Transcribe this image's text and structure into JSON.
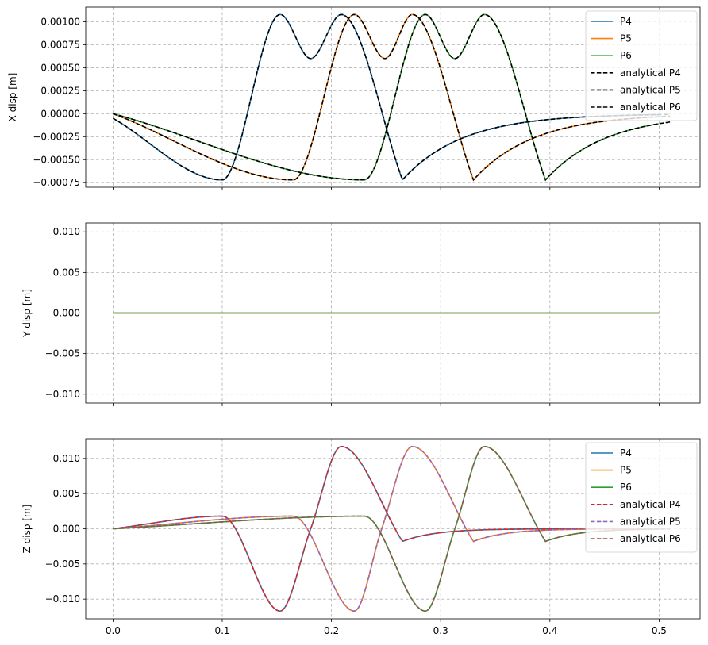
{
  "chart_data": [
    {
      "type": "line",
      "ylabel": "X disp [m]",
      "xlabel": "",
      "xlim": [
        -0.025,
        0.5375
      ],
      "ylim": [
        -0.0008,
        0.00116
      ],
      "grid": true,
      "legend": "top-right",
      "xticks": [
        0.0,
        0.1,
        0.2,
        0.3,
        0.4,
        0.5
      ],
      "show_xticklabels": false,
      "yticks": [
        -0.00075,
        -0.0005,
        -0.00025,
        0.0,
        0.00025,
        0.0005,
        0.00075,
        0.001
      ],
      "ytick_labels": [
        "−0.00075",
        "−0.00050",
        "−0.00025",
        "0.00000",
        "0.00025",
        "0.00050",
        "0.00075",
        "0.00100"
      ],
      "series_params": [
        {
          "name": "P4",
          "color": "#1f77b4",
          "style": "solid",
          "kind": "x",
          "t0": 0.0,
          "x_end": 0.5
        },
        {
          "name": "P5",
          "color": "#ff7f0e",
          "style": "solid",
          "kind": "x",
          "t0": 0.0625,
          "x_end": 0.5
        },
        {
          "name": "P6",
          "color": "#2ca02c",
          "style": "solid",
          "kind": "x",
          "t0": 0.125,
          "x_end": 0.5
        },
        {
          "name": "analytical P4",
          "color": "#000000",
          "style": "dashed",
          "kind": "x",
          "t0": 0.0,
          "x_end": 0.51
        },
        {
          "name": "analytical P5",
          "color": "#000000",
          "style": "dashed",
          "kind": "x",
          "t0": 0.0625,
          "x_end": 0.51
        },
        {
          "name": "analytical P6",
          "color": "#000000",
          "style": "dashed",
          "kind": "x",
          "t0": 0.125,
          "x_end": 0.51
        }
      ],
      "key_points": {
        "P4": {
          "x": [
            0.0,
            0.1,
            0.153,
            0.181,
            0.209,
            0.265
          ],
          "y": [
            -5e-05,
            -0.00072,
            0.00108,
            0.0006,
            0.00108,
            -0.00072
          ]
        },
        "P5": {
          "x": [
            0.0,
            0.165,
            0.221,
            0.249,
            0.274,
            0.33
          ],
          "y": [
            0.0,
            -0.00072,
            0.00108,
            0.0006,
            0.00108,
            -0.00072
          ]
        },
        "P6": {
          "x": [
            0.0,
            0.23,
            0.286,
            0.313,
            0.34,
            0.396
          ],
          "y": [
            0.0,
            -0.00072,
            0.00108,
            0.0006,
            0.00108,
            -0.00072
          ]
        }
      }
    },
    {
      "type": "line",
      "ylabel": "Y disp [m]",
      "xlabel": "",
      "xlim": [
        -0.025,
        0.5375
      ],
      "ylim": [
        -0.0111,
        0.0111
      ],
      "grid": true,
      "legend": "none",
      "xticks": [
        0.0,
        0.1,
        0.2,
        0.3,
        0.4,
        0.5
      ],
      "show_xticklabels": false,
      "yticks": [
        -0.01,
        -0.005,
        0.0,
        0.005,
        0.01
      ],
      "ytick_labels": [
        "−0.010",
        "−0.005",
        "0.000",
        "0.005",
        "0.010"
      ],
      "series": [
        {
          "name": "P4",
          "color": "#1f77b4",
          "x": [
            0.0,
            0.5
          ],
          "values": [
            0.0,
            0.0
          ]
        },
        {
          "name": "P5",
          "color": "#ff7f0e",
          "x": [
            0.0,
            0.5
          ],
          "values": [
            0.0,
            0.0
          ]
        },
        {
          "name": "P6",
          "color": "#2ca02c",
          "x": [
            0.0,
            0.5
          ],
          "values": [
            0.0,
            0.0
          ]
        }
      ]
    },
    {
      "type": "line",
      "ylabel": "Z disp [m]",
      "xlabel": "",
      "xlim": [
        -0.025,
        0.5375
      ],
      "ylim": [
        -0.0128,
        0.0128
      ],
      "grid": true,
      "legend": "top-right",
      "xticks": [
        0.0,
        0.1,
        0.2,
        0.3,
        0.4,
        0.5
      ],
      "xtick_labels": [
        "0.0",
        "0.1",
        "0.2",
        "0.3",
        "0.4",
        "0.5"
      ],
      "show_xticklabels": true,
      "yticks": [
        -0.01,
        -0.005,
        0.0,
        0.005,
        0.01
      ],
      "ytick_labels": [
        "−0.010",
        "−0.005",
        "0.000",
        "0.005",
        "0.010"
      ],
      "series_params": [
        {
          "name": "P4",
          "color": "#1f77b4",
          "style": "solid",
          "kind": "z",
          "t0": 0.0,
          "x_end": 0.5
        },
        {
          "name": "P5",
          "color": "#ff7f0e",
          "style": "solid",
          "kind": "z",
          "t0": 0.0625,
          "x_end": 0.5
        },
        {
          "name": "P6",
          "color": "#2ca02c",
          "style": "solid",
          "kind": "z",
          "t0": 0.125,
          "x_end": 0.5
        },
        {
          "name": "analytical P4",
          "color": "#d62728",
          "style": "dashed",
          "kind": "z",
          "t0": 0.0,
          "x_end": 0.51
        },
        {
          "name": "analytical P5",
          "color": "#9467bd",
          "style": "dashed",
          "kind": "z",
          "t0": 0.0625,
          "x_end": 0.51
        },
        {
          "name": "analytical P6",
          "color": "#8c564b",
          "style": "dashed",
          "kind": "z",
          "t0": 0.125,
          "x_end": 0.51
        }
      ],
      "key_points": {
        "P4": {
          "x": [
            0.0,
            0.1,
            0.153,
            0.181,
            0.209,
            0.265
          ],
          "y": [
            0.0,
            0.0018,
            -0.0117,
            0.0,
            0.0117,
            -0.0018
          ]
        },
        "P5": {
          "x": [
            0.0,
            0.165,
            0.221,
            0.246,
            0.274,
            0.33
          ],
          "y": [
            0.0,
            0.0018,
            -0.0117,
            0.0,
            0.0117,
            -0.0018
          ]
        },
        "P6": {
          "x": [
            0.0,
            0.23,
            0.286,
            0.313,
            0.34,
            0.396
          ],
          "y": [
            0.0,
            0.0018,
            -0.0117,
            0.0,
            0.0117,
            -0.0018
          ]
        }
      }
    }
  ]
}
